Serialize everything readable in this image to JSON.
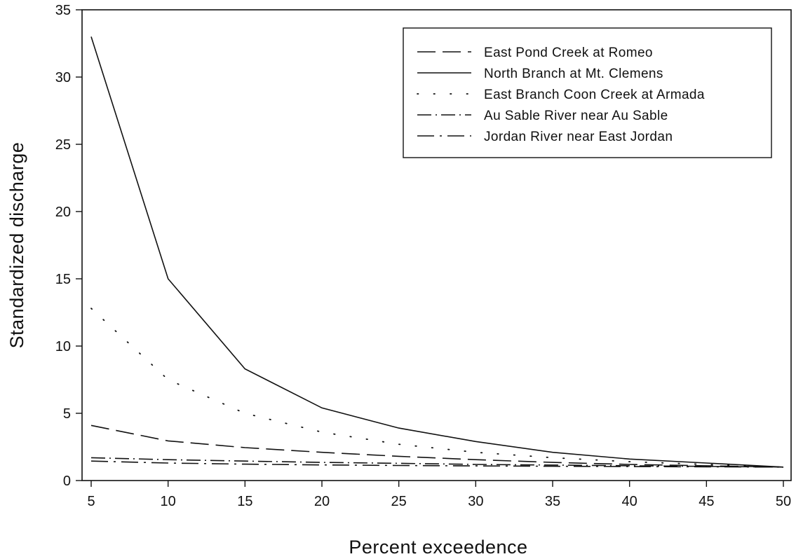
{
  "chart_data": {
    "type": "line",
    "title": "",
    "xlabel": "Percent exceedence",
    "ylabel": "Standardized discharge",
    "x": [
      5,
      10,
      15,
      20,
      25,
      30,
      35,
      40,
      45,
      50
    ],
    "xlim": [
      5,
      50
    ],
    "ylim": [
      0,
      35
    ],
    "xticks": [
      "5",
      "10",
      "15",
      "20",
      "25",
      "30",
      "35",
      "40",
      "45",
      "50"
    ],
    "yticks": [
      "0",
      "5",
      "10",
      "15",
      "20",
      "25",
      "30",
      "35"
    ],
    "grid": false,
    "legend_position": "top-right",
    "series": [
      {
        "name": "East Pond Creek at Romeo",
        "style": "long-dash",
        "color": "#111111",
        "values": [
          4.1,
          2.95,
          2.45,
          2.1,
          1.8,
          1.55,
          1.35,
          1.2,
          1.1,
          1.0
        ]
      },
      {
        "name": "North Branch at Mt. Clemens",
        "style": "solid",
        "color": "#111111",
        "values": [
          33.0,
          15.0,
          8.3,
          5.4,
          3.9,
          2.9,
          2.1,
          1.6,
          1.3,
          1.0
        ]
      },
      {
        "name": "East Branch Coon Creek at Armada",
        "style": "dotted",
        "color": "#111111",
        "values": [
          12.8,
          7.5,
          5.0,
          3.6,
          2.7,
          2.1,
          1.7,
          1.4,
          1.2,
          1.0
        ]
      },
      {
        "name": "Au Sable River near Au Sable",
        "style": "dash-dot",
        "color": "#111111",
        "values": [
          1.7,
          1.55,
          1.45,
          1.35,
          1.28,
          1.2,
          1.15,
          1.1,
          1.05,
          1.0
        ]
      },
      {
        "name": "Jordan River near East Jordan",
        "style": "long-dash-dot",
        "color": "#111111",
        "values": [
          1.45,
          1.3,
          1.22,
          1.16,
          1.12,
          1.09,
          1.06,
          1.04,
          1.02,
          1.0
        ]
      }
    ]
  }
}
